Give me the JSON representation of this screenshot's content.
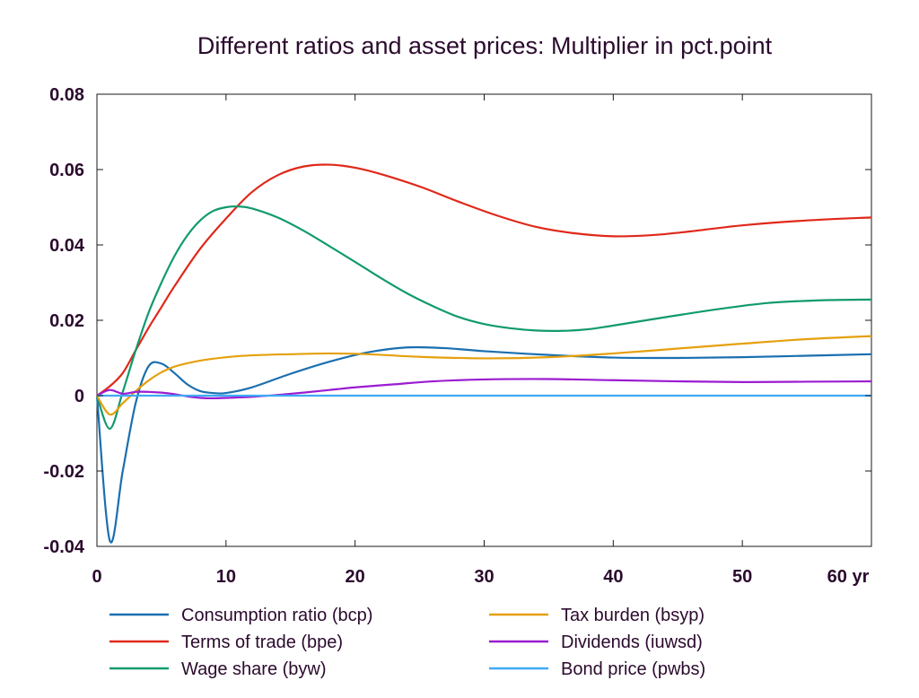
{
  "chart_data": {
    "type": "line",
    "title": "Different ratios and asset prices: Multiplier in pct.point",
    "xlabel": "",
    "ylabel": "",
    "x_unit_label": "yr",
    "xlim": [
      0,
      60
    ],
    "ylim": [
      -0.04,
      0.08
    ],
    "x_ticks": [
      0,
      10,
      20,
      30,
      40,
      50,
      60
    ],
    "x_tick_labels": [
      "0",
      "10",
      "20",
      "30",
      "40",
      "50",
      "60 yr"
    ],
    "y_ticks": [
      -0.04,
      -0.02,
      0,
      0.02,
      0.04,
      0.06,
      0.08
    ],
    "y_tick_labels": [
      "-0.04",
      "-0.02",
      "0",
      "0.02",
      "0.04",
      "0.06",
      "0.08"
    ],
    "grid": false,
    "legend_position": "bottom",
    "series": [
      {
        "name": "Consumption ratio (bcp)",
        "color": "#1a6fb0",
        "points": [
          [
            0,
            0
          ],
          [
            1,
            -0.0385
          ],
          [
            2,
            -0.02
          ],
          [
            3,
            -0.002
          ],
          [
            4,
            0.0078
          ],
          [
            5,
            0.0085
          ],
          [
            6,
            0.006
          ],
          [
            7,
            0.003
          ],
          [
            8,
            0.0012
          ],
          [
            9,
            0.0007
          ],
          [
            10,
            0.0007
          ],
          [
            12,
            0.0022
          ],
          [
            15,
            0.0058
          ],
          [
            18,
            0.009
          ],
          [
            21,
            0.0115
          ],
          [
            24,
            0.0128
          ],
          [
            27,
            0.0126
          ],
          [
            30,
            0.0118
          ],
          [
            35,
            0.0108
          ],
          [
            40,
            0.0101
          ],
          [
            45,
            0.01
          ],
          [
            50,
            0.0102
          ],
          [
            55,
            0.0106
          ],
          [
            60,
            0.011
          ]
        ]
      },
      {
        "name": "Terms of trade (bpe)",
        "color": "#e0281a",
        "points": [
          [
            0,
            0
          ],
          [
            1,
            0.0025
          ],
          [
            2,
            0.006
          ],
          [
            3,
            0.012
          ],
          [
            4,
            0.018
          ],
          [
            5,
            0.0235
          ],
          [
            6,
            0.029
          ],
          [
            8,
            0.039
          ],
          [
            10,
            0.047
          ],
          [
            12,
            0.054
          ],
          [
            14,
            0.0585
          ],
          [
            16,
            0.0608
          ],
          [
            18,
            0.0613
          ],
          [
            20,
            0.0605
          ],
          [
            22,
            0.0588
          ],
          [
            25,
            0.0555
          ],
          [
            28,
            0.0515
          ],
          [
            31,
            0.0478
          ],
          [
            34,
            0.0448
          ],
          [
            37,
            0.0431
          ],
          [
            40,
            0.0423
          ],
          [
            43,
            0.0426
          ],
          [
            46,
            0.0436
          ],
          [
            50,
            0.0452
          ],
          [
            55,
            0.0465
          ],
          [
            60,
            0.0473
          ]
        ]
      },
      {
        "name": "Wage share (byw)",
        "color": "#119a6e",
        "points": [
          [
            0,
            0
          ],
          [
            1,
            -0.0088
          ],
          [
            2,
            0.001
          ],
          [
            3,
            0.012
          ],
          [
            4,
            0.022
          ],
          [
            5,
            0.03
          ],
          [
            6,
            0.037
          ],
          [
            7,
            0.0425
          ],
          [
            8,
            0.0465
          ],
          [
            9,
            0.049
          ],
          [
            10,
            0.05
          ],
          [
            11,
            0.0502
          ],
          [
            12,
            0.0497
          ],
          [
            14,
            0.0473
          ],
          [
            16,
            0.0438
          ],
          [
            18,
            0.0397
          ],
          [
            20,
            0.0355
          ],
          [
            22,
            0.0312
          ],
          [
            24,
            0.0272
          ],
          [
            26,
            0.0238
          ],
          [
            28,
            0.0209
          ],
          [
            30,
            0.019
          ],
          [
            32,
            0.0179
          ],
          [
            34,
            0.0173
          ],
          [
            36,
            0.0172
          ],
          [
            38,
            0.0176
          ],
          [
            40,
            0.0186
          ],
          [
            44,
            0.0208
          ],
          [
            48,
            0.0229
          ],
          [
            52,
            0.0246
          ],
          [
            56,
            0.0253
          ],
          [
            60,
            0.0255
          ]
        ]
      },
      {
        "name": "Tax burden (bsyp)",
        "color": "#e5a00d",
        "points": [
          [
            0,
            0
          ],
          [
            1,
            -0.005
          ],
          [
            2,
            -0.002
          ],
          [
            3,
            0.0012
          ],
          [
            4,
            0.004
          ],
          [
            5,
            0.0062
          ],
          [
            6,
            0.0077
          ],
          [
            8,
            0.0093
          ],
          [
            10,
            0.0102
          ],
          [
            12,
            0.0107
          ],
          [
            15,
            0.011
          ],
          [
            18,
            0.0112
          ],
          [
            21,
            0.011
          ],
          [
            25,
            0.0103
          ],
          [
            30,
            0.0099
          ],
          [
            35,
            0.0102
          ],
          [
            40,
            0.0112
          ],
          [
            45,
            0.0125
          ],
          [
            50,
            0.0138
          ],
          [
            55,
            0.015
          ],
          [
            60,
            0.0158
          ]
        ]
      },
      {
        "name": "Dividends (iuwsd)",
        "color": "#9b1bd1",
        "points": [
          [
            0,
            0
          ],
          [
            1,
            0.0015
          ],
          [
            2,
            0.0005
          ],
          [
            3,
            0.001
          ],
          [
            4,
            0.001
          ],
          [
            5,
            0.0008
          ],
          [
            6,
            0.0004
          ],
          [
            7,
            -0.0002
          ],
          [
            8,
            -0.0006
          ],
          [
            9,
            -0.0007
          ],
          [
            10,
            -0.0006
          ],
          [
            12,
            -0.0003
          ],
          [
            14,
            0.0002
          ],
          [
            16,
            0.0008
          ],
          [
            18,
            0.0015
          ],
          [
            20,
            0.0022
          ],
          [
            23,
            0.003
          ],
          [
            26,
            0.0038
          ],
          [
            30,
            0.0043
          ],
          [
            35,
            0.0044
          ],
          [
            40,
            0.0041
          ],
          [
            45,
            0.0038
          ],
          [
            50,
            0.0036
          ],
          [
            55,
            0.0037
          ],
          [
            60,
            0.0038
          ]
        ]
      },
      {
        "name": "Bond price (pwbs)",
        "color": "#3fa9f5",
        "points": [
          [
            0,
            0
          ],
          [
            60,
            0
          ]
        ]
      }
    ]
  }
}
